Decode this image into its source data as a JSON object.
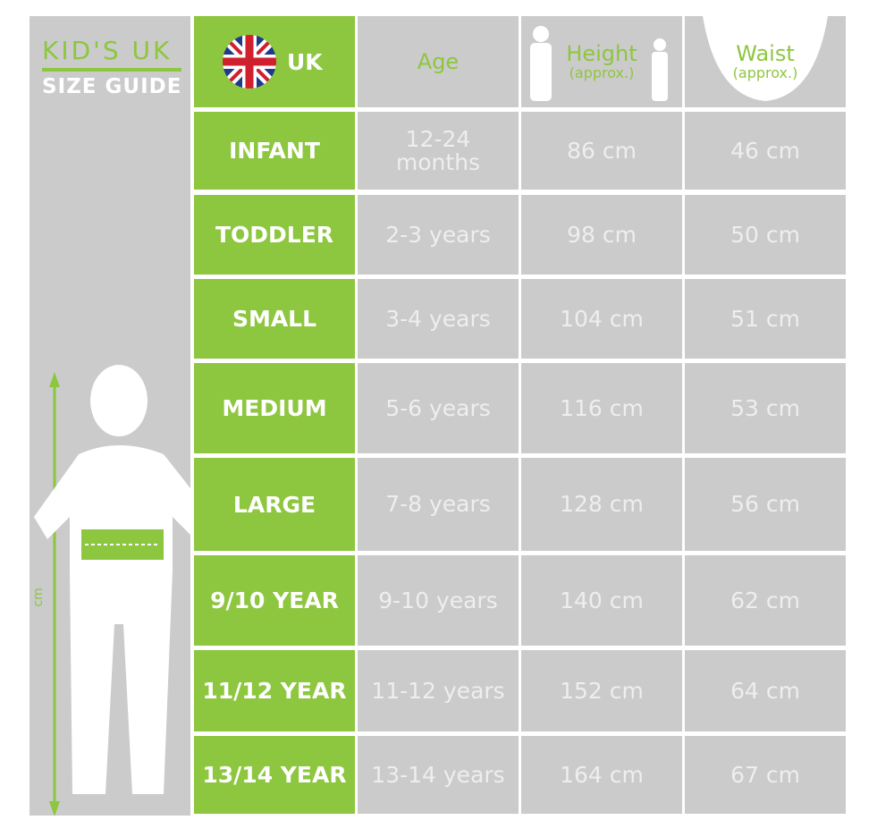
{
  "guide": {
    "title": "KID'S UK",
    "subtitle": "SIZE GUIDE",
    "axis_label": "cm"
  },
  "table": {
    "header": {
      "size": "UK",
      "age": "Age",
      "height": "Height",
      "height_note": "(approx.)",
      "waist": "Waist",
      "waist_note": "(approx.)"
    },
    "rows": [
      [
        "INFANT",
        "12-24 months",
        "86 cm",
        "46 cm"
      ],
      [
        "TODDLER",
        "2-3 years",
        "98 cm",
        "50 cm"
      ],
      [
        "SMALL",
        "3-4 years",
        "104 cm",
        "51 cm"
      ],
      [
        "MEDIUM",
        "5-6 years",
        "116 cm",
        "53 cm"
      ],
      [
        "LARGE",
        "7-8 years",
        "128 cm",
        "56 cm"
      ],
      [
        "9/10 YEAR",
        "9-10 years",
        "140 cm",
        "62 cm"
      ],
      [
        "11/12 YEAR",
        "11-12 years",
        "152 cm",
        "64 cm"
      ],
      [
        "13/14 YEAR",
        "13-14 years",
        "164 cm",
        "67 cm"
      ]
    ]
  }
}
